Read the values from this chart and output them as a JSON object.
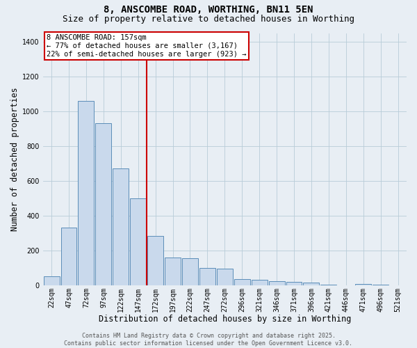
{
  "title_line1": "8, ANSCOMBE ROAD, WORTHING, BN11 5EN",
  "title_line2": "Size of property relative to detached houses in Worthing",
  "xlabel": "Distribution of detached houses by size in Worthing",
  "ylabel": "Number of detached properties",
  "categories": [
    "22sqm",
    "47sqm",
    "72sqm",
    "97sqm",
    "122sqm",
    "147sqm",
    "172sqm",
    "197sqm",
    "222sqm",
    "247sqm",
    "272sqm",
    "296sqm",
    "321sqm",
    "346sqm",
    "371sqm",
    "396sqm",
    "421sqm",
    "446sqm",
    "471sqm",
    "496sqm",
    "521sqm"
  ],
  "values": [
    50,
    330,
    1060,
    930,
    670,
    500,
    285,
    160,
    155,
    100,
    95,
    35,
    30,
    22,
    18,
    14,
    5,
    0,
    8,
    4,
    0
  ],
  "bar_color": "#c9d9ec",
  "bar_edge_color": "#5b8db8",
  "ylim": [
    0,
    1450
  ],
  "yticks": [
    0,
    200,
    400,
    600,
    800,
    1000,
    1200,
    1400
  ],
  "grid_color": "#b8ccd8",
  "background_color": "#e8eef4",
  "annotation_text": "8 ANSCOMBE ROAD: 157sqm\n← 77% of detached houses are smaller (3,167)\n22% of semi-detached houses are larger (923) →",
  "annotation_box_facecolor": "#ffffff",
  "annotation_box_edge": "#cc0000",
  "vline_color": "#cc0000",
  "vline_x": 5.48,
  "footer_text": "Contains HM Land Registry data © Crown copyright and database right 2025.\nContains public sector information licensed under the Open Government Licence v3.0.",
  "title_fontsize": 10,
  "subtitle_fontsize": 9,
  "tick_fontsize": 7,
  "xlabel_fontsize": 8.5,
  "ylabel_fontsize": 8.5,
  "annotation_fontsize": 7.5,
  "footer_fontsize": 6
}
